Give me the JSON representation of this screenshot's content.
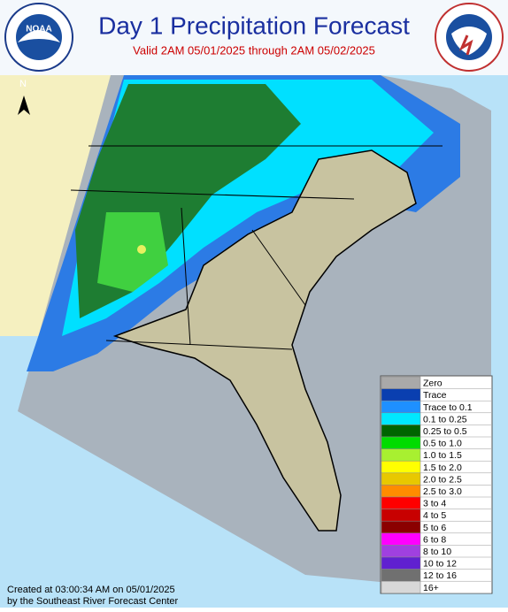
{
  "header": {
    "title": "Day 1 Precipitation Forecast",
    "subtitle": "Valid 2AM 05/01/2025 through 2AM 05/02/2025",
    "left_logo": "NOAA"
  },
  "map": {
    "north_label": "N"
  },
  "legend": [
    {
      "label": "Zero",
      "color": "#a9a9a9"
    },
    {
      "label": "Trace",
      "color": "#0a3fb0"
    },
    {
      "label": "Trace to 0.1",
      "color": "#1e90ff"
    },
    {
      "label": "0.1 to 0.25",
      "color": "#00e8ff"
    },
    {
      "label": "0.25 to 0.5",
      "color": "#006400"
    },
    {
      "label": "0.5 to 1.0",
      "color": "#00dc00"
    },
    {
      "label": "1.0 to 1.5",
      "color": "#a8f030"
    },
    {
      "label": "1.5 to 2.0",
      "color": "#ffff00"
    },
    {
      "label": "2.0 to 2.5",
      "color": "#e8c800"
    },
    {
      "label": "2.5 to 3.0",
      "color": "#ff8c00"
    },
    {
      "label": "3 to 4",
      "color": "#ff0000"
    },
    {
      "label": "4 to 5",
      "color": "#c80000"
    },
    {
      "label": "5 to 6",
      "color": "#8b0000"
    },
    {
      "label": "6 to 8",
      "color": "#ff00ff"
    },
    {
      "label": "8 to 10",
      "color": "#a040e0"
    },
    {
      "label": "10 to 12",
      "color": "#6020d0"
    },
    {
      "label": "12 to 16",
      "color": "#707070"
    },
    {
      "label": "16+",
      "color": "#d8d8d8"
    }
  ],
  "footer": {
    "line1": "Created at 03:00:34 AM on 05/01/2025",
    "line2": "by the Southeast River Forecast Center"
  }
}
